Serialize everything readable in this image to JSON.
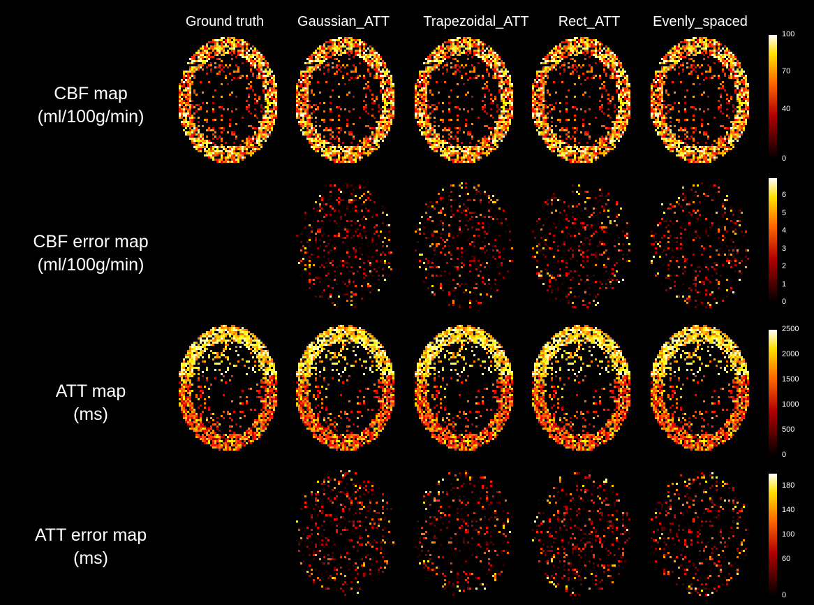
{
  "columns": [
    "Ground truth",
    "Gaussian_ATT",
    "Trapezoidal_ATT",
    "Rect_ATT",
    "Evenly_spaced"
  ],
  "rows": [
    {
      "line1": "CBF map",
      "line2": "(ml/100g/min)",
      "kind": "cbf",
      "ticks": [
        "100",
        "70",
        "40",
        "0"
      ],
      "tick_values": [
        100,
        70,
        40,
        0
      ],
      "max": 100
    },
    {
      "line1": "CBF error map",
      "line2": "(ml/100g/min)",
      "kind": "err",
      "ticks": [
        "6",
        "5",
        "4",
        "3",
        "2",
        "1",
        "0"
      ],
      "tick_values": [
        6,
        5,
        4,
        3,
        2,
        1,
        0
      ],
      "max": 7
    },
    {
      "line1": "ATT map",
      "line2": "(ms)",
      "kind": "att",
      "ticks": [
        "2500",
        "2000",
        "1500",
        "1000",
        "500",
        "0"
      ],
      "tick_values": [
        2500,
        2000,
        1500,
        1000,
        500,
        0
      ],
      "max": 2500
    },
    {
      "line1": "ATT error map",
      "line2": "(ms)",
      "kind": "err",
      "ticks": [
        "180",
        "140",
        "100",
        "60",
        "0"
      ],
      "tick_values": [
        180,
        140,
        100,
        60,
        0
      ],
      "max": 200
    }
  ],
  "colormap": "hot",
  "colors": {
    "background": "#000000",
    "text": "#ffffff"
  }
}
